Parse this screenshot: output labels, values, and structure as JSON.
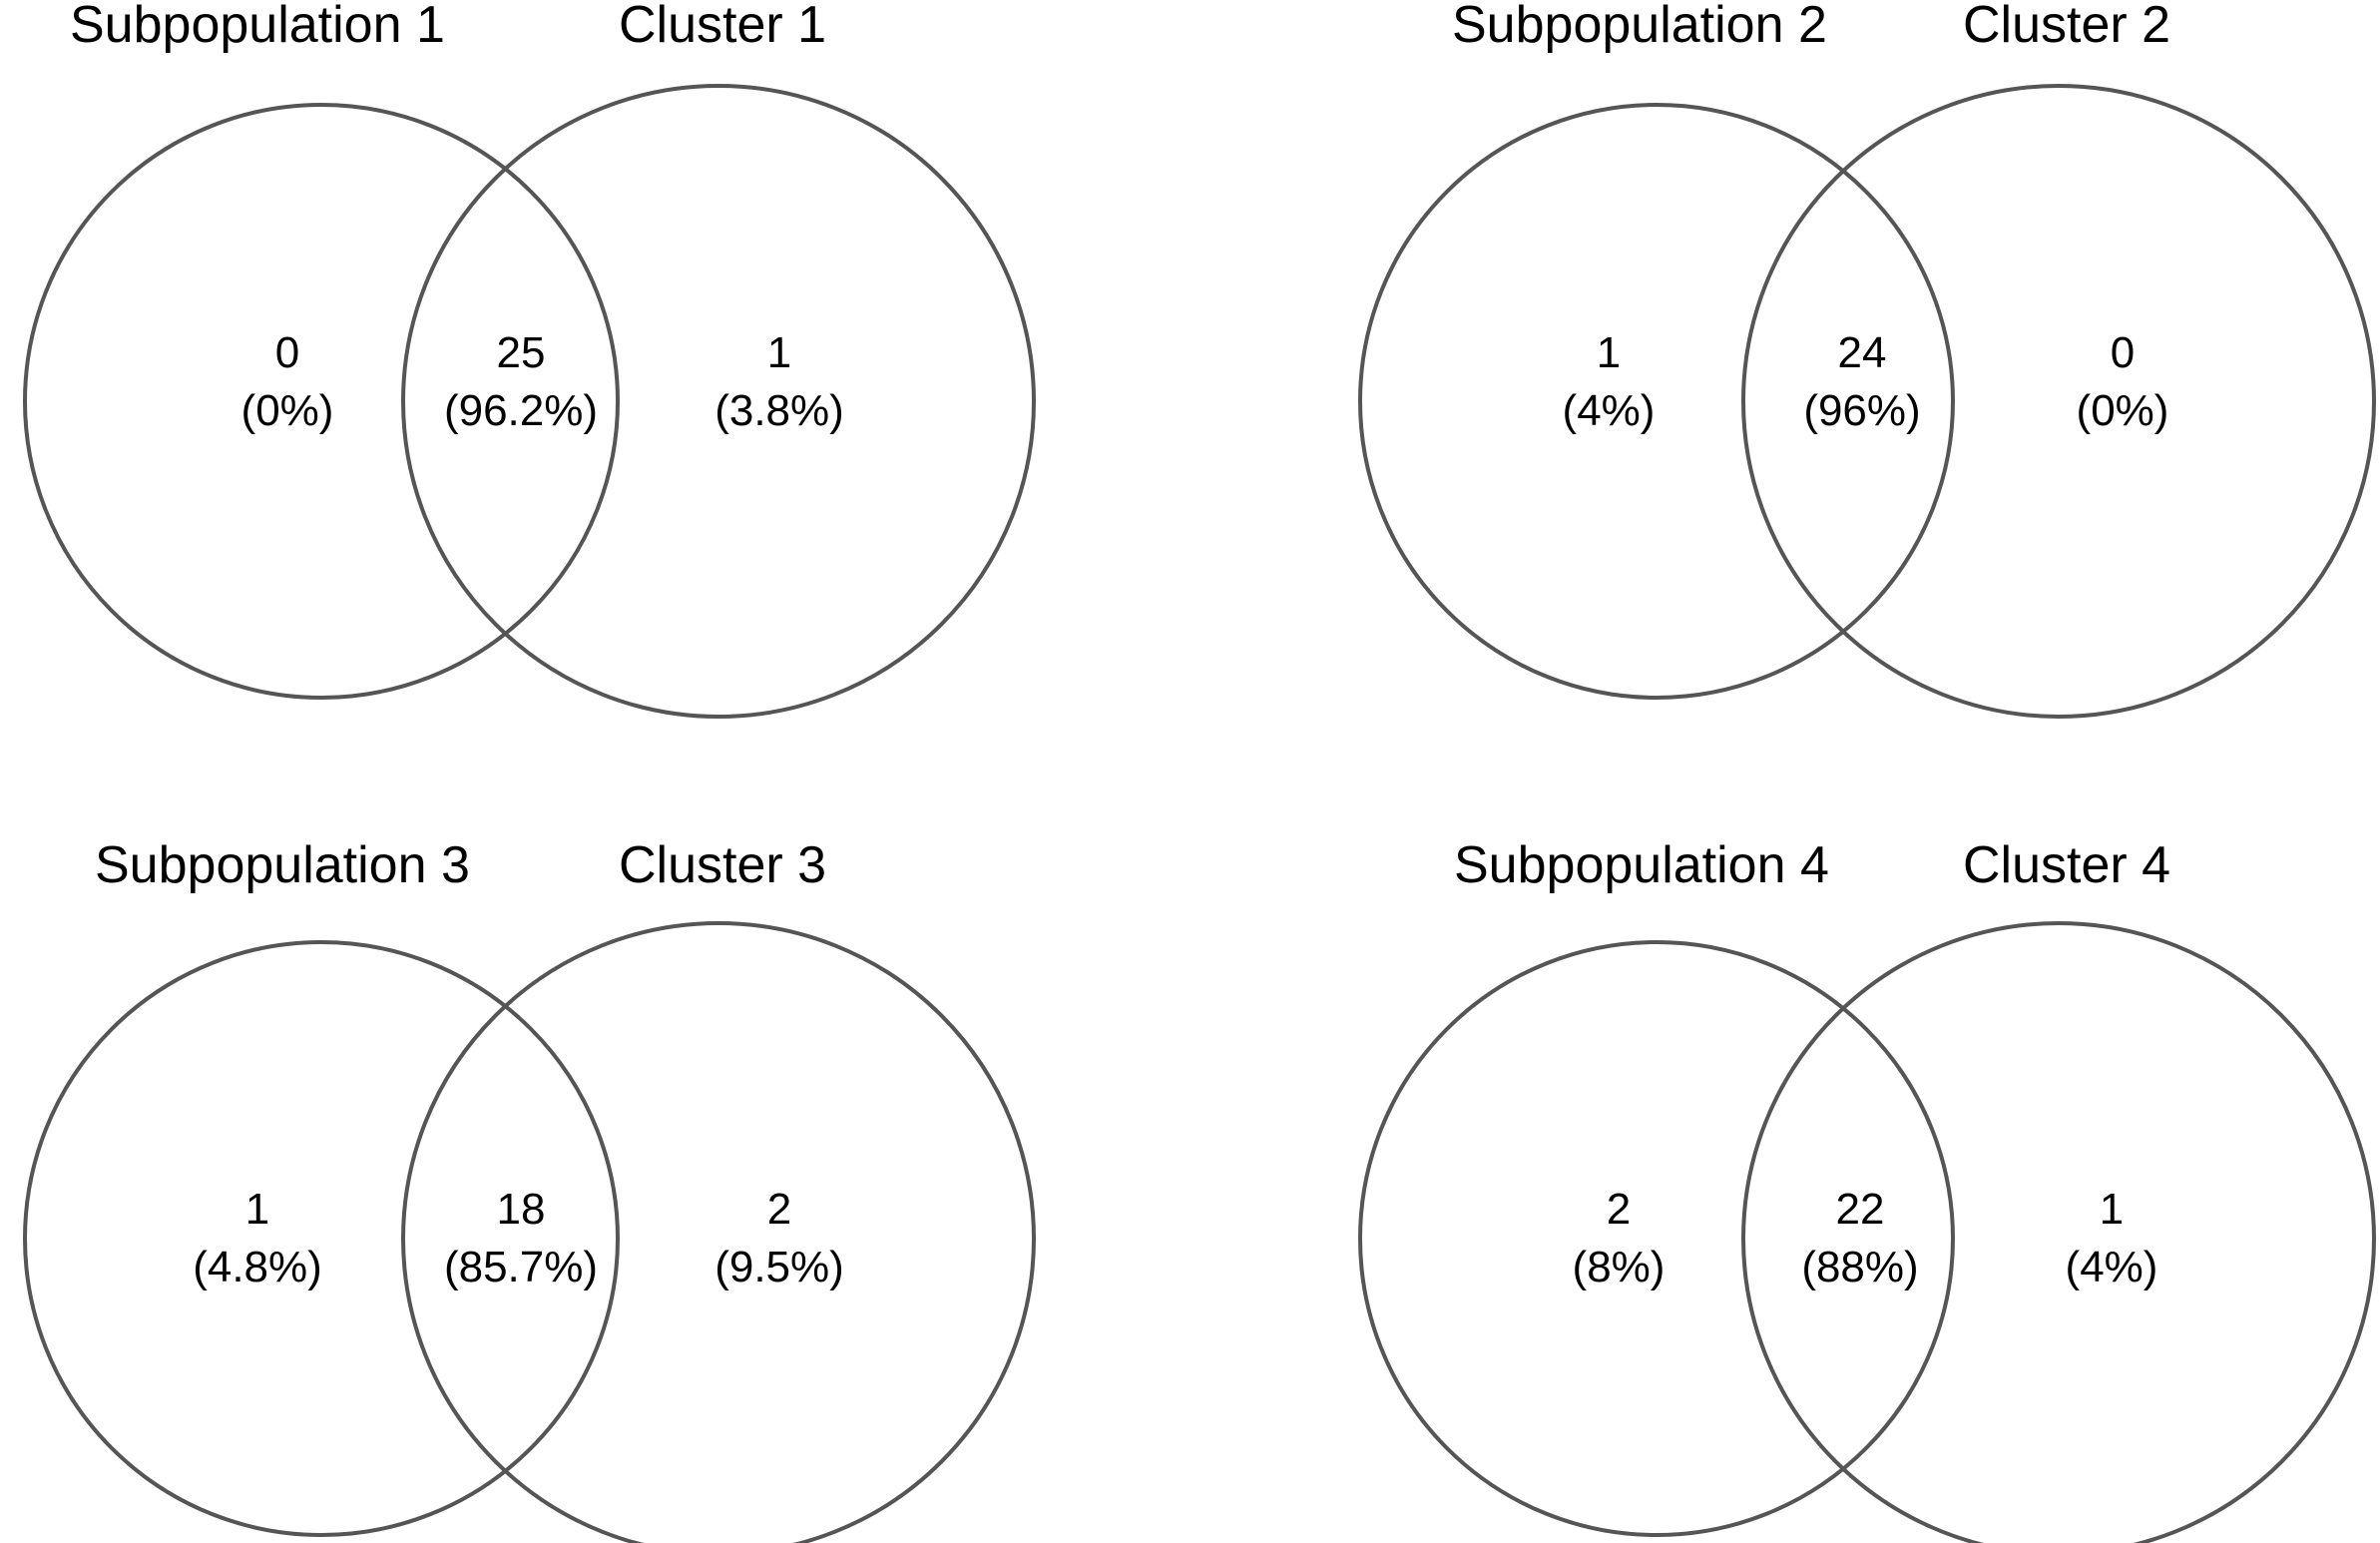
{
  "diagrams": [
    {
      "left_label": "Subpopulation 1",
      "right_label": "Cluster 1",
      "left_only": {
        "count": "0",
        "percent": "(0%)"
      },
      "overlap": {
        "count": "25",
        "percent": "(96.2%)"
      },
      "right_only": {
        "count": "1",
        "percent": "(3.8%)"
      }
    },
    {
      "left_label": "Subpopulation 2",
      "right_label": "Cluster 2",
      "left_only": {
        "count": "1",
        "percent": "(4%)"
      },
      "overlap": {
        "count": "24",
        "percent": "(96%)"
      },
      "right_only": {
        "count": "0",
        "percent": "(0%)"
      }
    },
    {
      "left_label": "Subpopulation 3",
      "right_label": "Cluster 3",
      "left_only": {
        "count": "1",
        "percent": "(4.8%)"
      },
      "overlap": {
        "count": "18",
        "percent": "(85.7%)"
      },
      "right_only": {
        "count": "2",
        "percent": "(9.5%)"
      }
    },
    {
      "left_label": "Subpopulation 4",
      "right_label": "Cluster 4",
      "left_only": {
        "count": "2",
        "percent": "(8%)"
      },
      "overlap": {
        "count": "22",
        "percent": "(88%)"
      },
      "right_only": {
        "count": "1",
        "percent": "(4%)"
      }
    }
  ]
}
